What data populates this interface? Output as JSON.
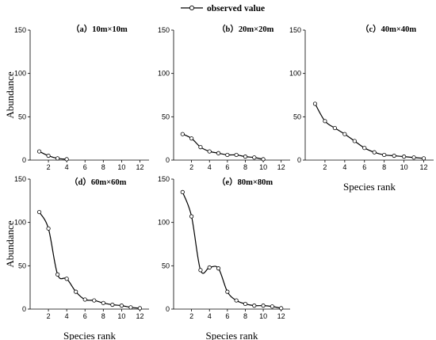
{
  "chart_data": [
    {
      "type": "line",
      "title": "（a）10m×10m",
      "ylabel": "Abundance",
      "xlabel": "",
      "xlim": [
        0,
        13
      ],
      "ylim": [
        0,
        150
      ],
      "xticks": [
        "2",
        "4",
        "6",
        "8",
        "10",
        "12"
      ],
      "yticks": [
        "0",
        "50",
        "100",
        "150"
      ],
      "series": [
        {
          "name": "observed value",
          "x": [
            1,
            2,
            3,
            4
          ],
          "y": [
            10,
            5,
            2,
            1
          ]
        }
      ]
    },
    {
      "type": "line",
      "title": "（b）20m×20m",
      "ylabel": "",
      "xlabel": "",
      "xlim": [
        0,
        13
      ],
      "ylim": [
        0,
        150
      ],
      "xticks": [
        "2",
        "4",
        "6",
        "8",
        "10",
        "12"
      ],
      "yticks": [
        "0",
        "50",
        "100",
        "150"
      ],
      "series": [
        {
          "name": "observed value",
          "x": [
            1,
            2,
            3,
            4,
            5,
            6,
            7,
            8,
            9,
            10
          ],
          "y": [
            30,
            25,
            15,
            10,
            8,
            6,
            6,
            4,
            3,
            1
          ]
        }
      ]
    },
    {
      "type": "line",
      "title": "（c）40m×40m",
      "ylabel": "",
      "xlabel": "Species rank",
      "xlim": [
        0,
        13
      ],
      "ylim": [
        0,
        150
      ],
      "xticks": [
        "2",
        "4",
        "6",
        "8",
        "10",
        "12"
      ],
      "yticks": [
        "0",
        "50",
        "100",
        "150"
      ],
      "series": [
        {
          "name": "observed value",
          "x": [
            1,
            2,
            3,
            4,
            5,
            6,
            7,
            8,
            9,
            10,
            11,
            12
          ],
          "y": [
            65,
            45,
            37,
            30,
            22,
            14,
            9,
            6,
            5,
            4,
            3,
            2
          ]
        }
      ]
    },
    {
      "type": "line",
      "title": "（d）60m×60m",
      "ylabel": "Abundance",
      "xlabel": "Species rank",
      "xlim": [
        0,
        13
      ],
      "ylim": [
        0,
        150
      ],
      "xticks": [
        "2",
        "4",
        "6",
        "8",
        "10",
        "12"
      ],
      "yticks": [
        "0",
        "50",
        "100",
        "150"
      ],
      "series": [
        {
          "name": "observed value",
          "x": [
            1,
            2,
            3,
            4,
            5,
            6,
            7,
            8,
            9,
            10,
            11,
            12
          ],
          "y": [
            112,
            93,
            40,
            35,
            20,
            11,
            10,
            7,
            5,
            4,
            2,
            1
          ]
        }
      ]
    },
    {
      "type": "line",
      "title": "（e）80m×80m",
      "ylabel": "",
      "xlabel": "Species rank",
      "xlim": [
        0,
        13
      ],
      "ylim": [
        0,
        150
      ],
      "xticks": [
        "2",
        "4",
        "6",
        "8",
        "10",
        "12"
      ],
      "yticks": [
        "0",
        "50",
        "100",
        "150"
      ],
      "series": [
        {
          "name": "observed value",
          "x": [
            1,
            2,
            3,
            4,
            5,
            6,
            7,
            8,
            9,
            10,
            11,
            12
          ],
          "y": [
            135,
            107,
            45,
            48,
            47,
            20,
            10,
            6,
            4,
            4,
            3,
            1
          ]
        }
      ]
    }
  ],
  "legend": {
    "label": "observed value",
    "placement": "top-center"
  }
}
